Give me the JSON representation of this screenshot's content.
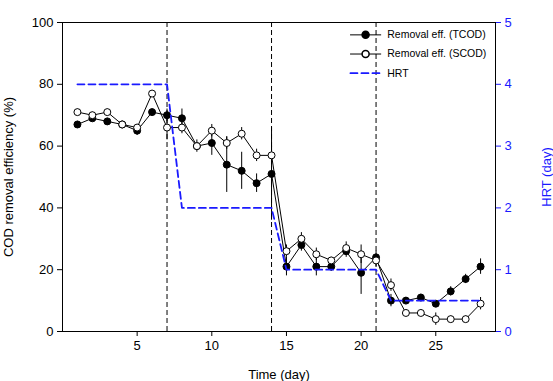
{
  "chart_data": {
    "type": "line",
    "x_label": "Time (day)",
    "y_label": "COD removal efficiency (%)",
    "y2_label": "HRT (day)",
    "xlim": [
      0,
      29
    ],
    "xticks": [
      5,
      10,
      15,
      20,
      25
    ],
    "ylim": [
      0,
      100
    ],
    "yticks": [
      0,
      20,
      40,
      60,
      80,
      100
    ],
    "y2lim": [
      0,
      5
    ],
    "y2ticks": [
      0,
      1,
      2,
      3,
      4,
      5
    ],
    "vlines": [
      7,
      14,
      21
    ],
    "legend": "upper right",
    "series": [
      {
        "name": "Removal eff. (TCOD)",
        "color": "#000000",
        "marker": "filled-circle",
        "x": [
          1,
          2,
          3,
          4,
          5,
          6,
          7,
          8,
          9,
          10,
          11,
          12,
          13,
          14,
          15,
          16,
          17,
          18,
          19,
          20,
          21,
          22,
          23,
          24,
          25,
          26,
          27,
          28
        ],
        "values": [
          67,
          69,
          68,
          67,
          65,
          71,
          70,
          69,
          60,
          61,
          54,
          52,
          48,
          51,
          21,
          28,
          21,
          21,
          26,
          19,
          24,
          10,
          10,
          11,
          9,
          13,
          17,
          21
        ],
        "errors": [
          1,
          1,
          1,
          1,
          1.5,
          1,
          2,
          3,
          2,
          4,
          9,
          6,
          3,
          15,
          3,
          2,
          3,
          1.5,
          2,
          7,
          2,
          2,
          1,
          1,
          1,
          1.5,
          1.5,
          2.5
        ]
      },
      {
        "name": "Removal eff. (SCOD)",
        "color": "#000000",
        "marker": "open-circle",
        "x": [
          1,
          2,
          3,
          4,
          5,
          6,
          7,
          8,
          9,
          10,
          11,
          12,
          13,
          14,
          15,
          16,
          17,
          18,
          19,
          20,
          21,
          22,
          23,
          24,
          25,
          26,
          27,
          28
        ],
        "values": [
          71,
          70,
          71,
          67,
          66,
          77,
          66,
          66,
          60,
          65,
          61,
          64,
          57,
          57,
          26,
          30,
          25,
          23,
          27,
          25,
          23,
          15,
          6,
          6,
          4,
          4,
          4,
          9
        ],
        "errors": [
          1,
          1,
          1,
          1,
          1,
          1,
          4,
          2,
          1,
          2,
          2,
          2,
          2,
          3,
          2,
          2,
          2,
          1,
          2,
          3,
          2,
          2,
          1,
          1,
          2,
          1,
          1,
          2
        ]
      },
      {
        "name": "HRT",
        "color": "#1a1aff",
        "line_style": "dashed",
        "axis": "y2",
        "x": [
          1,
          7,
          8,
          14,
          15,
          21,
          22,
          28
        ],
        "values": [
          4,
          4,
          2,
          2,
          1,
          1,
          0.5,
          0.5
        ]
      }
    ]
  }
}
